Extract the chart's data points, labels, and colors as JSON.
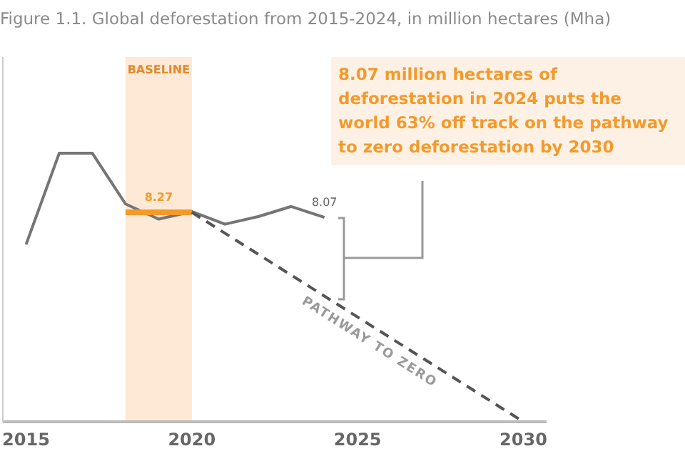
{
  "chart_data": {
    "type": "line",
    "title": "Figure 1.1. Global deforestation from 2015-2024, in million hectares (Mha)",
    "xlim": [
      2014.3,
      2030.7
    ],
    "xticks": [
      2015,
      2020,
      2025,
      2030
    ],
    "ylim": [
      0,
      14.4
    ],
    "tick_labels": "x",
    "grid": false,
    "legend": false,
    "marker": "none",
    "series": [
      {
        "color": "#757575",
        "x": [
          2015,
          2016,
          2017,
          2018,
          2019,
          2020,
          2021,
          2022,
          2023,
          2024
        ],
        "values": [
          7.0,
          10.6,
          10.6,
          8.6,
          8.0,
          8.3,
          7.8,
          8.1,
          8.5,
          8.07
        ],
        "value_labels": [
          null,
          null,
          null,
          null,
          null,
          null,
          null,
          null,
          null,
          "8.07"
        ]
      },
      {
        "color": "#f39a2b",
        "x": [
          2018,
          2020
        ],
        "values": [
          8.27,
          8.27
        ]
      },
      {
        "color": "#555555",
        "x": [
          2020,
          2030
        ],
        "values": [
          8.27,
          0
        ],
        "line_style": "dashed"
      }
    ],
    "bands": [
      {
        "axis": "x",
        "from": 2018,
        "to": 2020,
        "label": "BASELINE",
        "color": "#fde9d6"
      }
    ],
    "annotations": [
      {
        "text": "8.27",
        "x": 2019,
        "y": 8.27
      },
      "PATHWAY TO ZERO",
      "8.07 million hectares of deforestation in 2024 puts the world 63% off track on the pathway to zero deforestation by 2030"
    ]
  }
}
